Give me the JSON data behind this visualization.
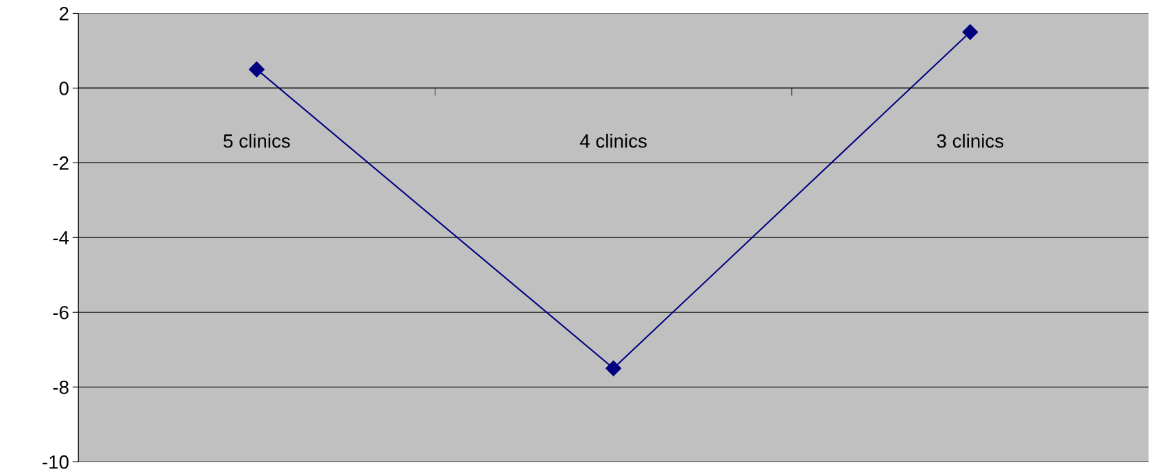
{
  "chart_data": {
    "type": "line",
    "categories": [
      "5 clinics",
      "4 clinics",
      "3 clinics"
    ],
    "series": [
      {
        "color": "#000080",
        "values": [
          0.5,
          -7.5,
          1.5
        ]
      }
    ],
    "ylim": [
      -10,
      2
    ],
    "yticks": [
      -10,
      -8,
      -6,
      -4,
      -2,
      0,
      2
    ],
    "grid": "y",
    "marker": "diamond",
    "line_style": "solid",
    "legend": false
  }
}
